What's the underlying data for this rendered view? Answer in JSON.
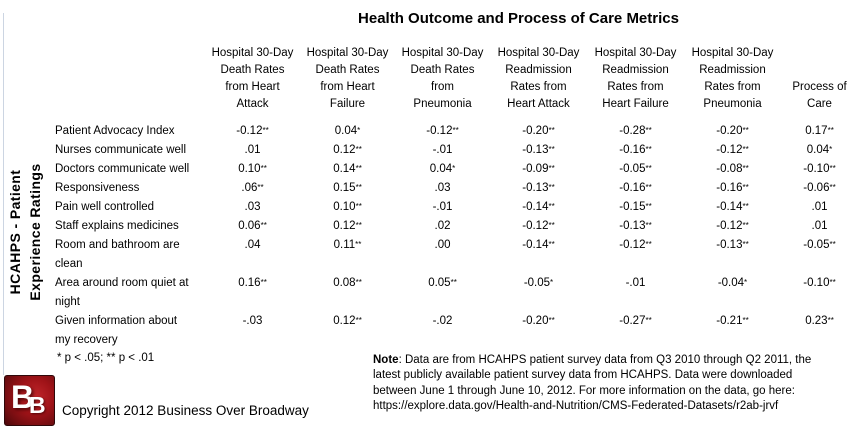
{
  "title": "Health Outcome and Process of Care Metrics",
  "chart_data": {
    "type": "table",
    "title": "Health Outcome and Process of Care Metrics",
    "row_group_label": "HCAHPS - Patient Experience Ratings",
    "row_group_label_lines": [
      "HCAHPS - Patient",
      "Experience Ratings"
    ],
    "columns": [
      [
        "Hospital 30-Day",
        "Death Rates",
        "from Heart",
        "Attack"
      ],
      [
        "Hospital 30-Day",
        "Death Rates",
        "from Heart",
        "Failure"
      ],
      [
        "Hospital 30-Day",
        "Death Rates",
        "from",
        "Pneumonia"
      ],
      [
        "Hospital 30-Day",
        "Readmission",
        "Rates from",
        "Heart Attack"
      ],
      [
        "Hospital 30-Day",
        "Readmission",
        "Rates from",
        "Heart Failure"
      ],
      [
        "Hospital 30-Day",
        "Readmission",
        "Rates from",
        "Pneumonia"
      ],
      [
        "Process of",
        "Care"
      ]
    ],
    "rows": [
      {
        "label": "Patient Advocacy Index",
        "values": [
          "-0.12**",
          "0.04*",
          "-0.12**",
          "-0.20**",
          "-0.28**",
          "-0.20**",
          "0.17**"
        ]
      },
      {
        "label": "Nurses communicate well",
        "values": [
          ".01",
          "0.12**",
          "-.01",
          "-0.13**",
          "-0.16**",
          "-0.12**",
          "0.04*"
        ]
      },
      {
        "label": "Doctors communicate well",
        "values": [
          "0.10**",
          "0.14**",
          "0.04*",
          "-0.09**",
          "-0.05**",
          "-0.08**",
          "-0.10**"
        ]
      },
      {
        "label": "Responsiveness",
        "values": [
          ".06**",
          "0.15**",
          ".03",
          "-0.13**",
          "-0.16**",
          "-0.16**",
          "-0.06**"
        ]
      },
      {
        "label": "Pain well controlled",
        "values": [
          ".03",
          "0.10**",
          "-.01",
          "-0.14**",
          "-0.15**",
          "-0.14**",
          ".01"
        ]
      },
      {
        "label": "Staff explains medicines",
        "values": [
          "0.06**",
          "0.12**",
          ".02",
          "-0.12**",
          "-0.13**",
          "-0.12**",
          ".01"
        ]
      },
      {
        "label": [
          "Room and bathroom are",
          "clean"
        ],
        "values": [
          ".04",
          "0.11**",
          ".00",
          "-0.14**",
          "-0.12**",
          "-0.13**",
          "-0.05**"
        ]
      },
      {
        "label": [
          "Area around room quiet at",
          "night"
        ],
        "values": [
          "0.16**",
          "0.08**",
          "0.05**",
          "-0.05*",
          "-.01",
          "-0.04*",
          "-0.10**"
        ]
      },
      {
        "label": [
          "Given information about",
          "my recovery"
        ],
        "values": [
          "-.03",
          "0.12**",
          "-.02",
          "-0.20**",
          "-0.27**",
          "-0.21**",
          "0.23**"
        ]
      }
    ]
  },
  "footnote": "* p < .05; ** p < .01",
  "note": {
    "label": "Note",
    "line1": ": Data are from HCAHPS patient survey data from Q3 2010 through Q2 2011, the",
    "line2": "latest publicly available patient survey data from HCAHPS. Data were downloaded",
    "line3": "between June 1 through June 10, 2012. For more information on the data, go here:",
    "line4": "https://explore.data.gov/Health-and-Nutrition/CMS-Federated-Datasets/r2ab-jrvf"
  },
  "footer": {
    "copyright": "Copyright 2012 Business Over Broadway",
    "logo_letter_large": "B",
    "logo_letter_small": "B"
  },
  "colors": {
    "logo_red": "#a01318",
    "logo_red_dark": "#49070a",
    "rule_gray": "#ccd5e2",
    "text": "#000000"
  }
}
